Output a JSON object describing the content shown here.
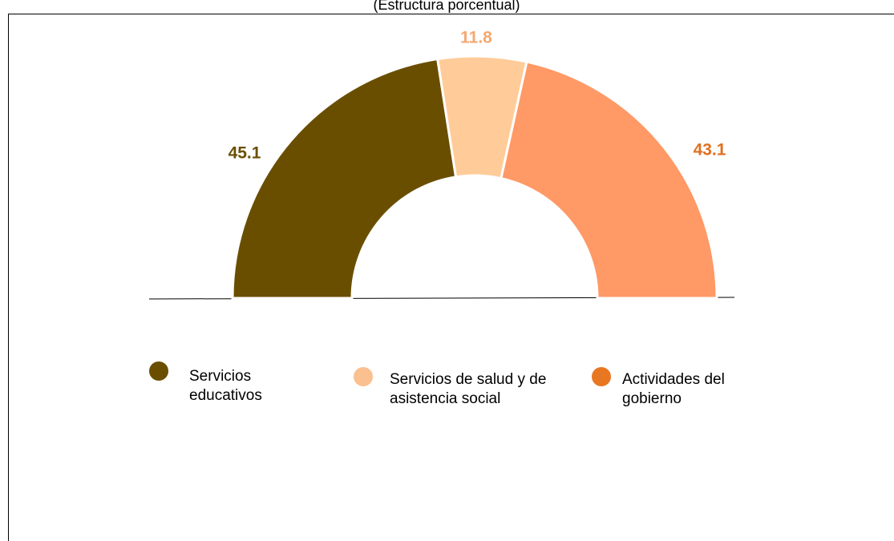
{
  "chart_data": {
    "type": "semi-donut",
    "subtitle": "(Estructura porcentual)",
    "categories": [
      "Servicios educativos",
      "Servicios de salud y de asistencia social",
      "Actividades del gobierno"
    ],
    "values": [
      45.1,
      11.8,
      43.1
    ],
    "colors": [
      "#6a4e00",
      "#ffcc99",
      "#ff9966"
    ],
    "label_colors": [
      "#6a4e00",
      "#f4a870",
      "#e07020"
    ],
    "legend_colors": [
      "#6a4e00",
      "#fac090",
      "#e87722"
    ]
  }
}
